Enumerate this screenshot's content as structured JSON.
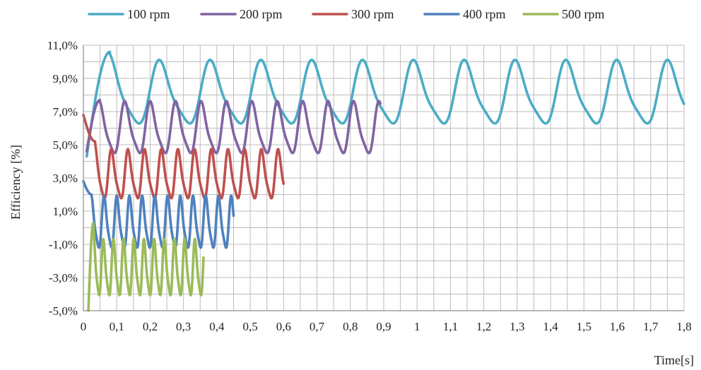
{
  "chart_data": {
    "type": "line",
    "title": "",
    "xlabel": "Time[s]",
    "ylabel": "Efficiency [%]",
    "xlim": [
      0,
      1.8
    ],
    "ylim": [
      -5.0,
      11.0
    ],
    "grid": true,
    "legend_position": "top",
    "x_tick_labels": [
      "0",
      "0,1",
      "0,2",
      "0,3",
      "0,4",
      "0,5",
      "0,6",
      "0,7",
      "0,8",
      "0,9",
      "1",
      "1,1",
      "1,2",
      "1,3",
      "1,4",
      "1,5",
      "1,6",
      "1,7",
      "1,8"
    ],
    "y_tick_labels": [
      "11,0%",
      "9,0%",
      "7,0%",
      "5,0%",
      "3,0%",
      "1,0%",
      "-1,0%",
      "-3,0%",
      "-5,0%"
    ],
    "series": [
      {
        "name": "100 rpm",
        "color": "#4bacc6",
        "x_start": 0.01,
        "x_end": 1.8,
        "period": 0.1523,
        "phase": 0.08,
        "max": 10.2,
        "min": 5.8,
        "start_value": 4.3,
        "first_peak": 10.6
      },
      {
        "name": "200 rpm",
        "color": "#8064a2",
        "x_start": 0.01,
        "x_end": 0.89,
        "period": 0.0762,
        "phase": 0.05,
        "max": 7.7,
        "min": 4.1,
        "start_value": 4.6,
        "first_peak": 7.7
      },
      {
        "name": "300 rpm",
        "color": "#c0504d",
        "x_start": 0.0,
        "x_end": 0.6,
        "period": 0.05,
        "phase": 0.035,
        "max": 4.8,
        "min": 1.4,
        "start_value": 6.8,
        "first_peak": 5.2
      },
      {
        "name": "400 rpm",
        "color": "#4f81bd",
        "x_start": 0.0,
        "x_end": 0.45,
        "period": 0.0381,
        "phase": 0.025,
        "max": 2.0,
        "min": -1.6,
        "start_value": 2.8,
        "first_peak": 2.0
      },
      {
        "name": "500 rpm",
        "color": "#9bbb59",
        "x_start": 0.015,
        "x_end": 0.36,
        "period": 0.0305,
        "phase": 0.03,
        "max": -0.6,
        "min": -4.5,
        "start_value": -5.0,
        "first_peak": 0.3
      }
    ]
  }
}
